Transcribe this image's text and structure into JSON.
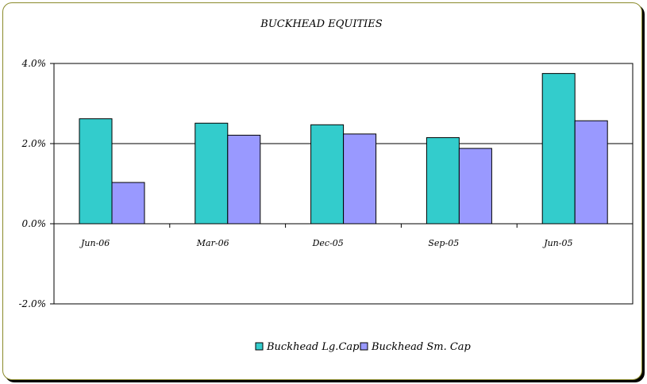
{
  "chart_data": {
    "type": "bar",
    "title": "BUCKHEAD EQUITIES",
    "categories": [
      "Jun-06",
      "Mar-06",
      "Dec-05",
      "Sep-05",
      "Jun-05"
    ],
    "series": [
      {
        "name": "Buckhead Lg.Cap",
        "color": "#33CCCC",
        "values": [
          2.62,
          2.51,
          2.47,
          2.15,
          3.75
        ]
      },
      {
        "name": "Buckhead Sm. Cap",
        "color": "#9999FF",
        "values": [
          1.03,
          2.21,
          2.24,
          1.88,
          2.57
        ]
      }
    ],
    "ylim": [
      -2.0,
      4.0
    ],
    "yticks": [
      4.0,
      2.0,
      0.0,
      -2.0
    ],
    "ytick_labels": [
      "4.0%",
      "2.0%",
      "0.0%",
      "-2.0%"
    ],
    "grid": true,
    "legend": "bottom"
  }
}
